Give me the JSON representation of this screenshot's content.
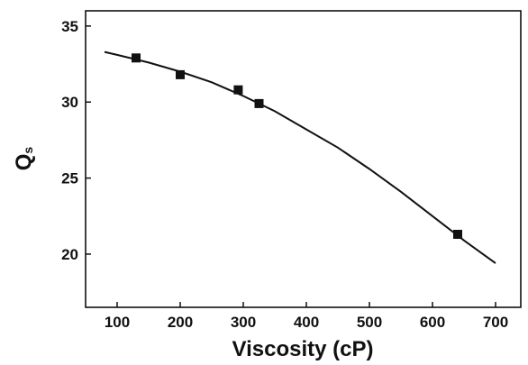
{
  "chart_data": {
    "type": "scatter",
    "xlabel": "Viscosity (cP)",
    "ylabel_main": "Q",
    "ylabel_sub": "s",
    "xlim": [
      50,
      740
    ],
    "ylim": [
      16.5,
      36
    ],
    "xticks": [
      100,
      200,
      300,
      400,
      500,
      600,
      700
    ],
    "yticks": [
      20,
      25,
      30,
      35
    ],
    "grid": false,
    "series": [
      {
        "marker": "square",
        "x": [
          130,
          200,
          292,
          325,
          640
        ],
        "y": [
          32.9,
          31.8,
          30.8,
          29.9,
          21.3
        ]
      }
    ],
    "fit": {
      "x": [
        80,
        100,
        150,
        200,
        250,
        300,
        350,
        400,
        450,
        500,
        550,
        600,
        650,
        700
      ],
      "y": [
        33.3,
        33.1,
        32.6,
        32.0,
        31.3,
        30.4,
        29.4,
        28.2,
        27.0,
        25.6,
        24.1,
        22.5,
        20.9,
        19.4
      ]
    }
  }
}
